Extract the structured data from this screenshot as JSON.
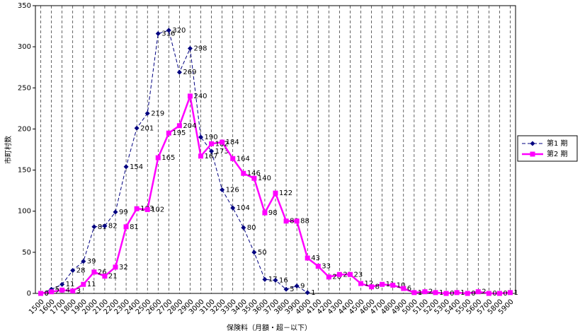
{
  "chart_data": {
    "type": "line",
    "x_label": "保険料（月額・超－以下）",
    "y_label": "市町村数",
    "categories": [
      "1500",
      "1600",
      "1700",
      "1800",
      "1900",
      "2000",
      "2100",
      "2200",
      "2300",
      "2400",
      "2500",
      "2600",
      "2700",
      "2800",
      "2900",
      "3000",
      "3100",
      "3200",
      "3300",
      "3400",
      "3500",
      "3600",
      "3700",
      "3800",
      "3900",
      "4000",
      "4100",
      "4200",
      "4300",
      "4400",
      "4500",
      "4600",
      "4700",
      "4800",
      "4900",
      "5000",
      "5100",
      "5200",
      "5300",
      "5400",
      "5500",
      "5600",
      "5700",
      "5800",
      "5900"
    ],
    "series": [
      {
        "name": "第1 期",
        "color": "#000080",
        "dashed": true,
        "marker": "diamond",
        "values": [
          0,
          5,
          11,
          28,
          39,
          81,
          82,
          99,
          154,
          201,
          219,
          316,
          320,
          269,
          298,
          190,
          173,
          126,
          104,
          80,
          50,
          17,
          16,
          5,
          9,
          1,
          null,
          null,
          null,
          null,
          null,
          null,
          null,
          null,
          null,
          null,
          null,
          null,
          null,
          null,
          null,
          null,
          null,
          null,
          null
        ]
      },
      {
        "name": "第2 期",
        "color": "#ff00ff",
        "dashed": false,
        "marker": "square",
        "values": [
          0,
          2,
          4,
          3,
          11,
          26,
          21,
          32,
          81,
          103,
          102,
          165,
          195,
          204,
          240,
          167,
          182,
          184,
          164,
          146,
          140,
          98,
          122,
          88,
          88,
          43,
          33,
          20,
          23,
          23,
          12,
          8,
          11,
          10,
          6,
          1,
          2,
          1,
          0,
          1,
          0,
          2,
          0,
          0,
          1
        ]
      }
    ],
    "ylim": [
      0,
      350
    ],
    "yticks": [
      0,
      50,
      100,
      150,
      200,
      250,
      300,
      350
    ],
    "grid": true,
    "legend": "right"
  }
}
